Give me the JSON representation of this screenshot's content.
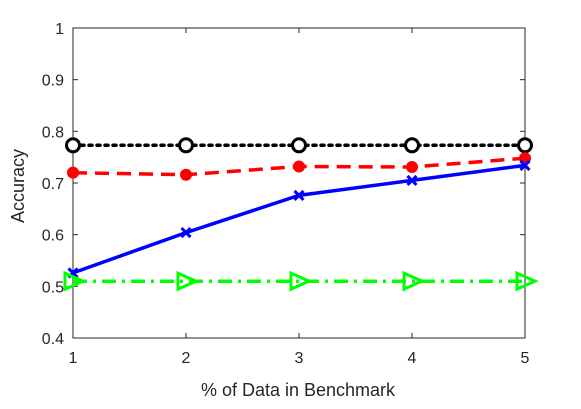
{
  "chart_data": {
    "type": "line",
    "title": "",
    "xlabel": "% of Data in Benchmark",
    "ylabel": "Accuracy",
    "x": [
      1,
      2,
      3,
      4,
      5
    ],
    "xlim": [
      1,
      5
    ],
    "ylim": [
      0.4,
      1
    ],
    "xticks": [
      "1",
      "2",
      "3",
      "4",
      "5"
    ],
    "yticks": [
      "0.4",
      "0.5",
      "0.6",
      "0.7",
      "0.8",
      "0.9",
      "1"
    ],
    "grid": false,
    "legend": "none",
    "series": [
      {
        "values": [
          0.773,
          0.773,
          0.773,
          0.773,
          0.773
        ],
        "color": "#000000",
        "line_style": "dotted",
        "marker": "circle-open"
      },
      {
        "values": [
          0.72,
          0.716,
          0.732,
          0.731,
          0.748
        ],
        "color": "#ff0000",
        "line_style": "dashed",
        "marker": "circle-filled"
      },
      {
        "values": [
          0.526,
          0.604,
          0.676,
          0.705,
          0.734
        ],
        "color": "#0000ff",
        "line_style": "solid",
        "marker": "x"
      },
      {
        "values": [
          0.51,
          0.51,
          0.51,
          0.51,
          0.51
        ],
        "color": "#00ff00",
        "line_style": "dash-dot",
        "marker": "triangle-right"
      }
    ]
  }
}
